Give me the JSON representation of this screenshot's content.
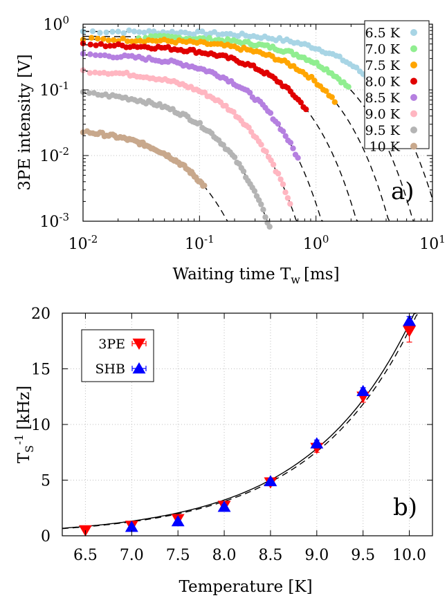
{
  "chart_data": [
    {
      "type": "scatter",
      "panel_label": "a)",
      "xlabel": "Waiting time T",
      "xlabel_sub": "w",
      "xlabel_unit": "[ms]",
      "ylabel": "3PE intensity [V]",
      "xscale": "log",
      "yscale": "log",
      "xlim": [
        0.01,
        10
      ],
      "ylim": [
        0.001,
        1
      ],
      "x_ticks": [
        {
          "base": "10",
          "exp": "-2",
          "value": 0.01
        },
        {
          "base": "10",
          "exp": "-1",
          "value": 0.1
        },
        {
          "base": "10",
          "exp": "0",
          "value": 1
        },
        {
          "base": "10",
          "exp": "1",
          "value": 10
        }
      ],
      "y_ticks": [
        {
          "base": "10",
          "exp": "-3",
          "value": 0.001
        },
        {
          "base": "10",
          "exp": "-2",
          "value": 0.01
        },
        {
          "base": "10",
          "exp": "-1",
          "value": 0.1
        },
        {
          "base": "10",
          "exp": "0",
          "value": 1
        }
      ],
      "grid": true,
      "legend_position": "top-right",
      "fit_style": "dashed black",
      "series": [
        {
          "name": "6.5 K",
          "color": "#a8d5e5",
          "A": 0.78,
          "tau": 1.7,
          "x_start": 0.01,
          "x_end": 3.1
        },
        {
          "name": "7.0 K",
          "color": "#90ee90",
          "A": 0.66,
          "tau": 1.05,
          "x_start": 0.03,
          "x_end": 1.9
        },
        {
          "name": "7.5 K",
          "color": "#ffa500",
          "A": 0.6,
          "tau": 0.66,
          "x_start": 0.01,
          "x_end": 1.45
        },
        {
          "name": "8.0 K",
          "color": "#e00000",
          "A": 0.5,
          "tau": 0.36,
          "x_start": 0.01,
          "x_end": 0.82
        },
        {
          "name": "8.5 K",
          "color": "#b580e0",
          "A": 0.36,
          "tau": 0.19,
          "x_start": 0.01,
          "x_end": 0.7
        },
        {
          "name": "9.0 K",
          "color": "#ffb6c1",
          "A": 0.21,
          "tau": 0.127,
          "x_start": 0.01,
          "x_end": 0.6
        },
        {
          "name": "9.5 K",
          "color": "#b4b4b4",
          "A": 0.1,
          "tau": 0.083,
          "x_start": 0.01,
          "x_end": 0.4
        },
        {
          "name": "10 K",
          "color": "#c8a88c",
          "A": 0.028,
          "tau": 0.052,
          "x_start": 0.01,
          "x_end": 0.11
        }
      ]
    },
    {
      "type": "scatter",
      "panel_label": "b)",
      "xlabel": "Temperature [K]",
      "ylabel": "T",
      "ylabel_sub": "S",
      "ylabel_sup": "-1",
      "ylabel_unit": "[kHz]",
      "xlim": [
        6.25,
        10.25
      ],
      "ylim": [
        0,
        20
      ],
      "x_ticks": [
        "6.5",
        "7.0",
        "7.5",
        "8.0",
        "8.5",
        "9.0",
        "9.5",
        "10.0"
      ],
      "y_ticks": [
        "0",
        "5",
        "10",
        "15",
        "20"
      ],
      "grid": true,
      "legend_position": "top-left",
      "series": [
        {
          "name": "3PE",
          "color": "#ff0000",
          "marker": "triangle-down",
          "x": [
            6.5,
            7.0,
            7.5,
            8.0,
            8.5,
            9.0,
            9.5,
            10.0
          ],
          "y": [
            0.5,
            0.9,
            1.5,
            2.7,
            4.8,
            7.9,
            12.5,
            18.4
          ],
          "err": [
            0.1,
            0.2,
            0.3,
            0.3,
            0.3,
            0.4,
            0.5,
            1.0
          ]
        },
        {
          "name": "SHB",
          "color": "#0000ff",
          "marker": "triangle-up",
          "x": [
            7.0,
            7.5,
            8.0,
            8.5,
            9.0,
            9.5,
            10.0
          ],
          "y": [
            0.8,
            1.3,
            2.6,
            4.9,
            8.3,
            13.0,
            19.3
          ],
          "err": [
            0.1,
            0.1,
            0.2,
            0.2,
            0.3,
            0.3,
            0.4
          ]
        }
      ],
      "fits": [
        {
          "style": "solid",
          "a": 0.0026,
          "b": 0.89
        },
        {
          "style": "dashed",
          "a": 0.0024,
          "b": 0.895
        }
      ]
    }
  ]
}
